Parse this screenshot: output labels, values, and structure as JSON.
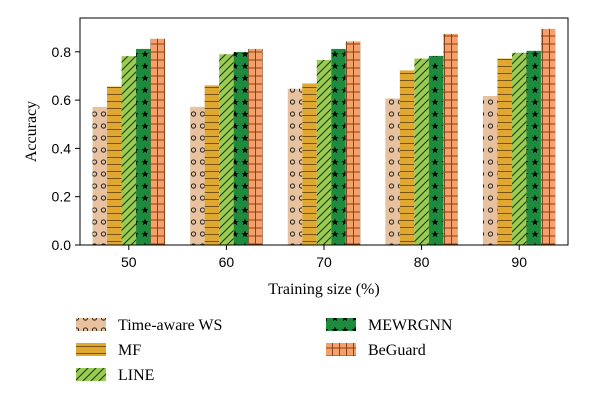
{
  "chart_data": {
    "type": "bar",
    "xlabel": "Training size (%)",
    "ylabel": "Accuracy",
    "categories": [
      "50",
      "60",
      "70",
      "80",
      "90"
    ],
    "ylim": [
      0,
      0.94
    ],
    "yticks": [
      "0.0",
      "0.2",
      "0.4",
      "0.6",
      "0.8"
    ],
    "grid": false,
    "legend_position": "bottom",
    "series": [
      {
        "name": "Time-aware WS",
        "color": "#e8c29e",
        "pattern": "circles",
        "values": [
          0.572,
          0.572,
          0.647,
          0.607,
          0.617
        ]
      },
      {
        "name": "MF",
        "color": "#e0a830",
        "pattern": "horizontal-lines",
        "values": [
          0.656,
          0.661,
          0.669,
          0.723,
          0.772
        ]
      },
      {
        "name": "LINE",
        "color": "#9bcc52",
        "pattern": "diagonal-lines",
        "values": [
          0.782,
          0.79,
          0.766,
          0.772,
          0.796
        ]
      },
      {
        "name": "MEWRGNN",
        "color": "#1e8a3e",
        "pattern": "stars",
        "values": [
          0.812,
          0.799,
          0.812,
          0.783,
          0.804
        ]
      },
      {
        "name": "BeGuard",
        "color": "#f5a06a",
        "pattern": "grid",
        "values": [
          0.854,
          0.812,
          0.843,
          0.874,
          0.895
        ]
      }
    ]
  }
}
